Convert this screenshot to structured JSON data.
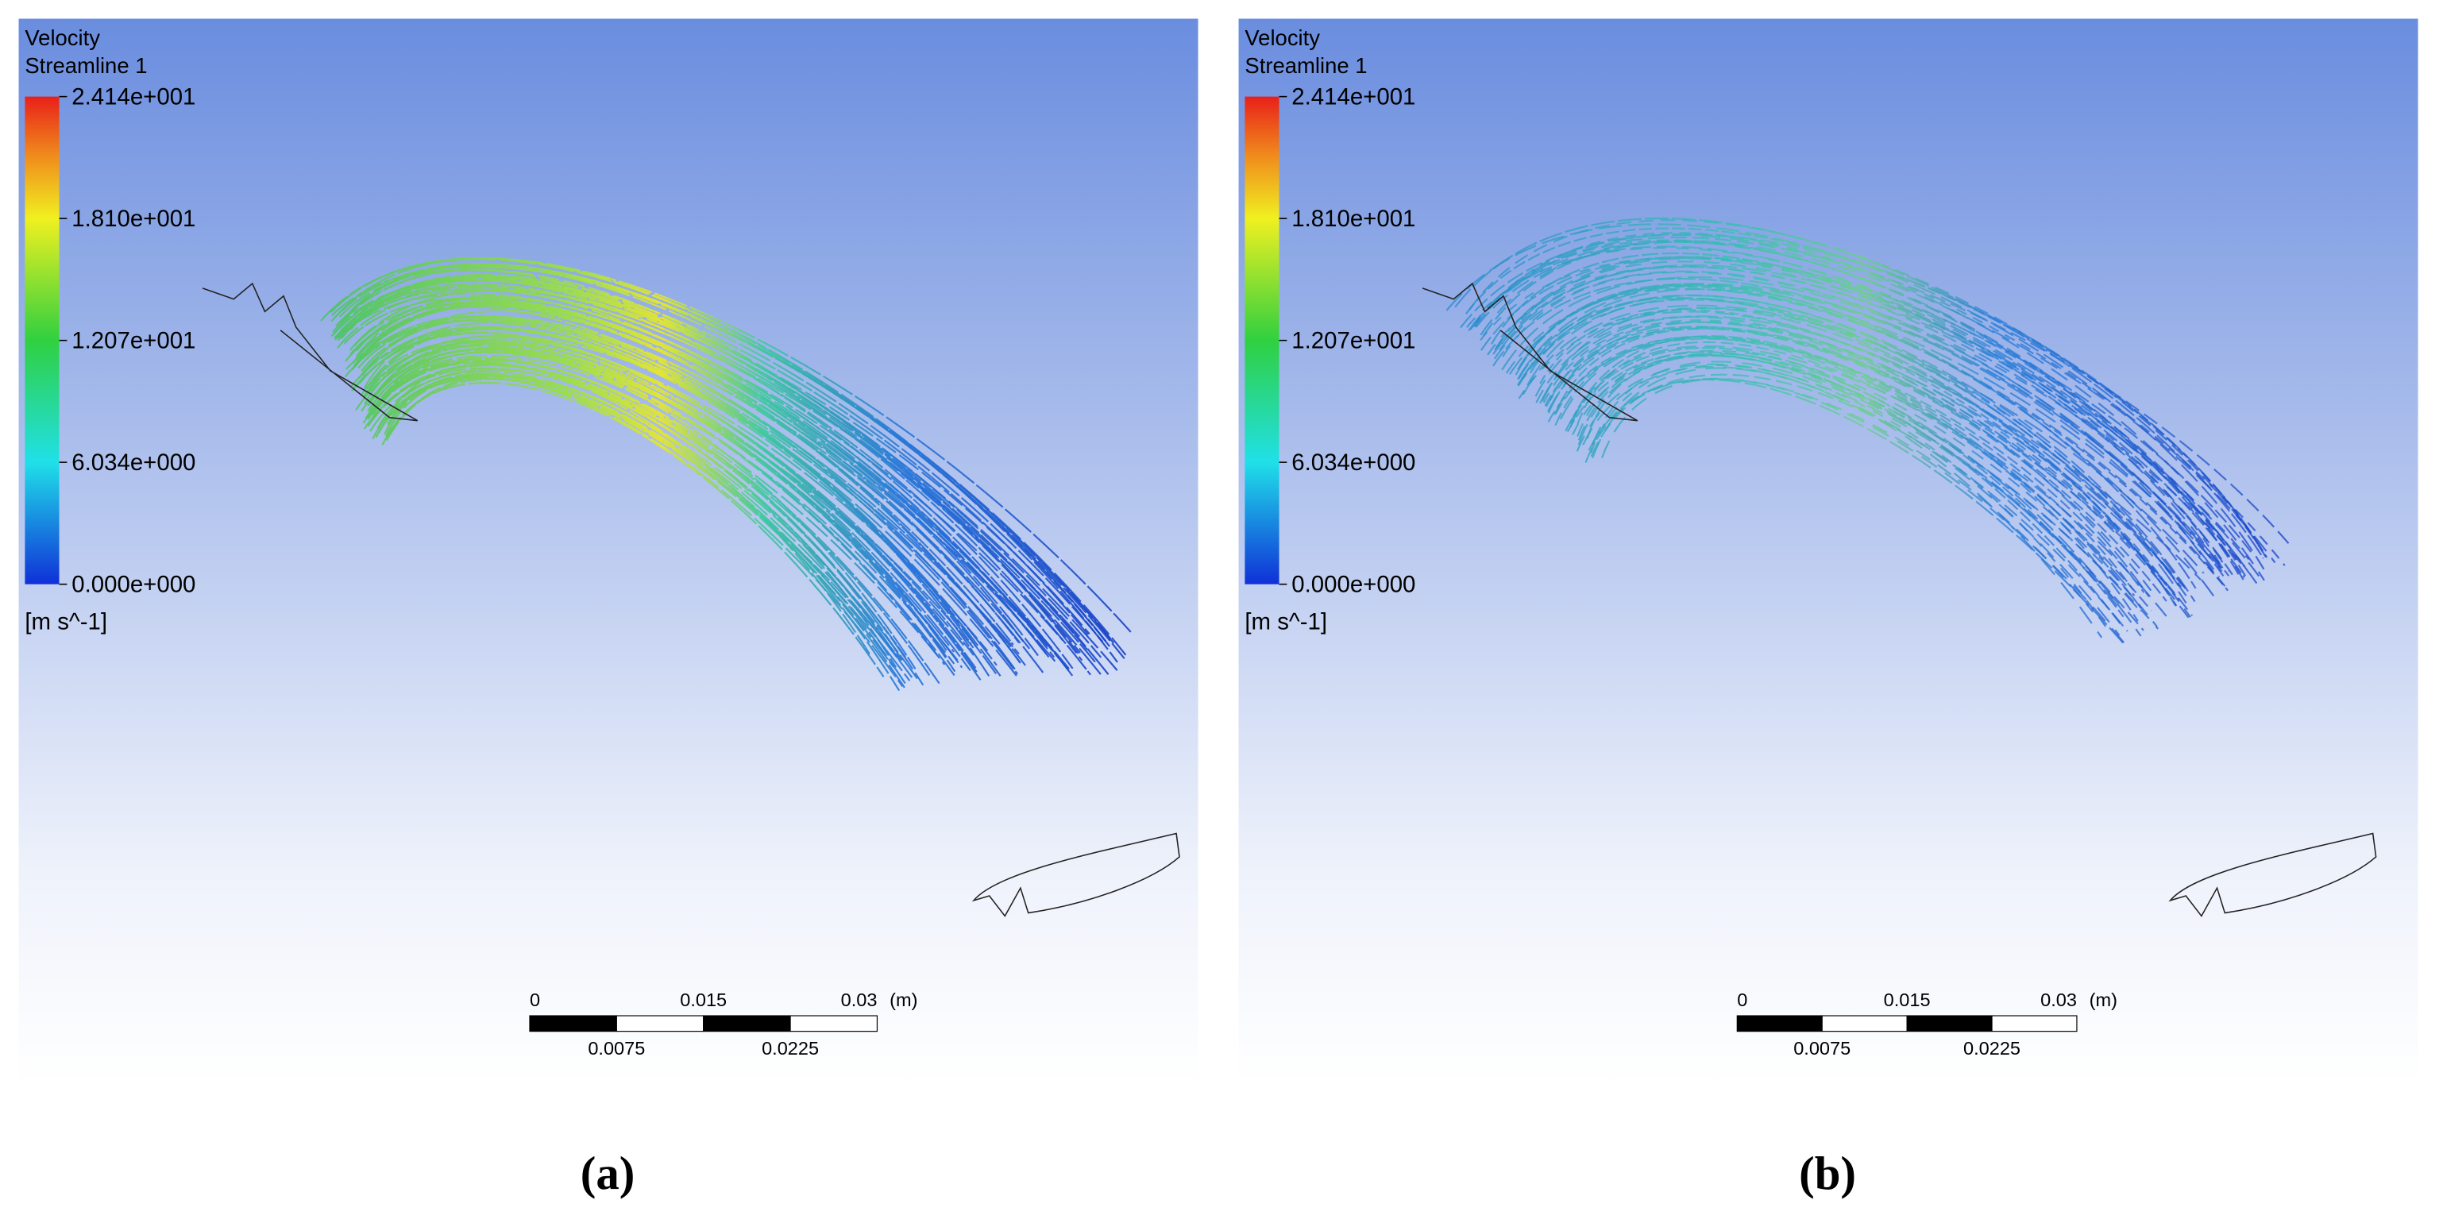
{
  "panels": [
    {
      "legend": {
        "title": "Velocity",
        "subtitle": "Streamline 1",
        "ticks": [
          "2.414e+001",
          "1.810e+001",
          "1.207e+001",
          "6.034e+000",
          "0.000e+000"
        ],
        "unit": "[m s^-1]"
      },
      "scale_bar": {
        "top_labels": [
          "0",
          "0.015",
          "0.03"
        ],
        "unit": "(m)",
        "bottom_labels": [
          "0.0075",
          "0.0225"
        ]
      },
      "caption": "(a)"
    },
    {
      "legend": {
        "title": "Velocity",
        "subtitle": "Streamline 1",
        "ticks": [
          "2.414e+001",
          "1.810e+001",
          "1.207e+001",
          "6.034e+000",
          "0.000e+000"
        ],
        "unit": "[m s^-1]"
      },
      "scale_bar": {
        "top_labels": [
          "0",
          "0.015",
          "0.03"
        ],
        "unit": "(m)",
        "bottom_labels": [
          "0.0075",
          "0.0225"
        ]
      },
      "caption": "(b)"
    }
  ]
}
